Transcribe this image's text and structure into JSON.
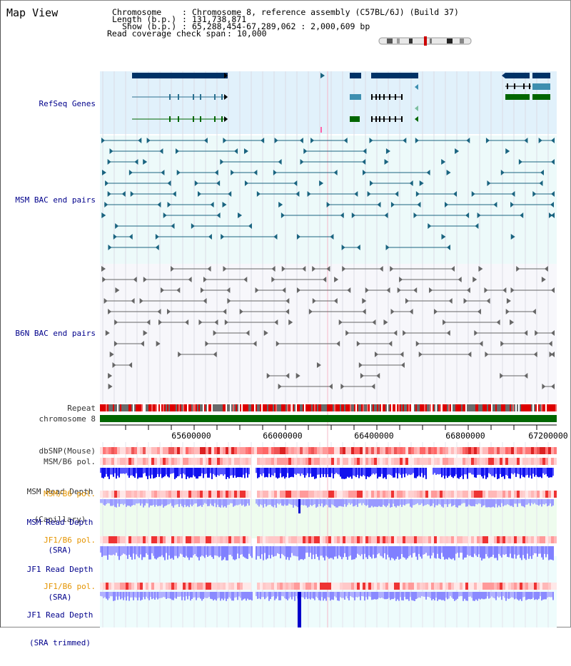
{
  "title": "Map View",
  "header": {
    "chromosome_label": "Chromosome",
    "chromosome_value": "Chromosome 8, reference assembly (C57BL/6J) (Build 37)",
    "length_label": "Length (b.p.)",
    "length_value": "131,738,871",
    "show_label": "Show (b.p.)",
    "show_value": "65,288,454-67,289,062 : 2,000,609 bp",
    "read_label": "Read coverage check span",
    "read_value": "10,000"
  },
  "tracks": {
    "refseq": "RefSeq Genes",
    "msm_bac": "MSM BAC end pairs",
    "b6n_bac": "B6N BAC end pairs",
    "repeat": "Repeat",
    "chromosome": "chromosome 8",
    "dbsnp": "dbSNP(Mouse)",
    "msm_b6_pol": "MSM/B6 pol.",
    "msm_read_depth_cap_l1": "MSM Read Depth",
    "msm_read_depth_cap_l2": "(Capillary)",
    "msm_b6_pol2": "MSM/B6 pol.",
    "msm_read_depth_sra_l1": "MSM Read Depth",
    "msm_read_depth_sra_l2": "(SRA)",
    "jf1_b6_pol": "JF1/B6 pol.",
    "jf1_read_depth_l1": "JF1 Read Depth",
    "jf1_read_depth_l2": "(SRA)",
    "jf1_b6_pol2": "JF1/B6 pol.",
    "jf1_trim_l1": "JF1 Read Depth",
    "jf1_trim_l2": "(SRA trimmed)"
  },
  "axis": {
    "ticks": [
      "65600000",
      "66000000",
      "66400000",
      "66800000",
      "67200000"
    ]
  },
  "colors": {
    "refseq_bg": "#e1f1fb",
    "bac_bg": "#edfafa",
    "gene_dark": "#003366",
    "gene_green": "#006600",
    "gene_teal": "#3e8fb0",
    "msm_pair": "#1a6480",
    "b6n_pair": "#666666",
    "repeat_red": "#dd0000",
    "chrom_green": "#006600",
    "depth_blue": "#1a1aee",
    "depth_light": "#8080ff"
  }
}
